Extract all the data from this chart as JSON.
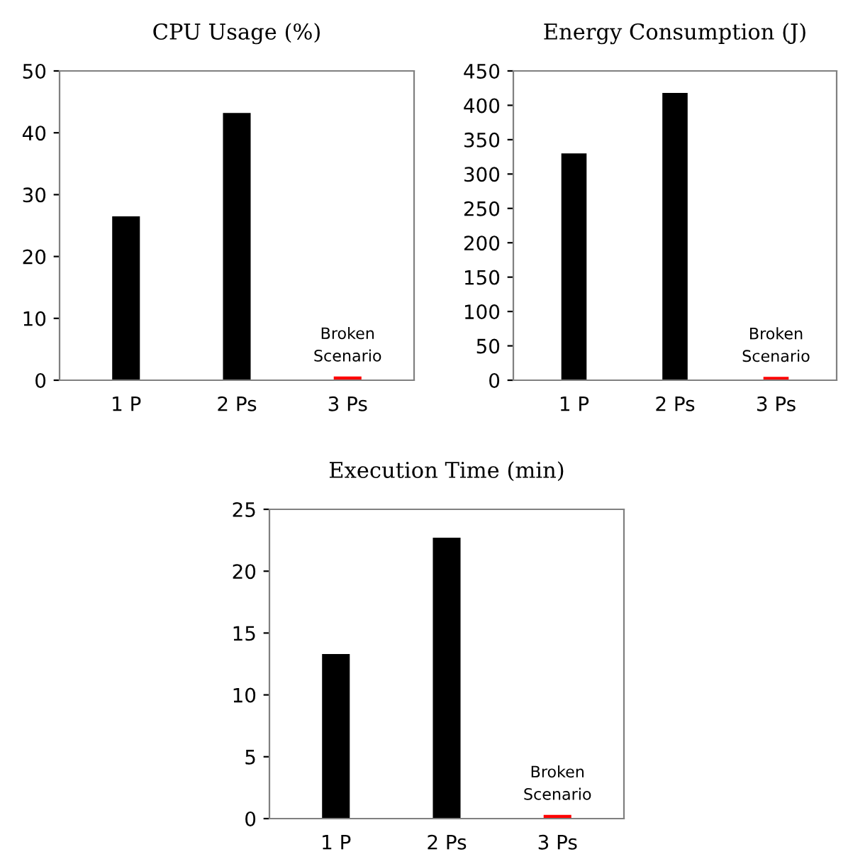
{
  "chart_data": [
    {
      "type": "bar",
      "title": "CPU Usage (%)",
      "categories": [
        "1 P",
        "2 Ps",
        "3 Ps"
      ],
      "values": [
        26.5,
        43.2,
        0.6
      ],
      "colors": [
        "#000000",
        "#000000",
        "#ff0000"
      ],
      "ylim": [
        0,
        50
      ],
      "yticks": [
        0,
        10,
        20,
        30,
        40,
        50
      ],
      "grid": false,
      "annotations": [
        {
          "text": "Broken\nScenario",
          "x": "3 Ps",
          "y": 0.6
        }
      ]
    },
    {
      "type": "bar",
      "title": "Energy Consumption (J)",
      "categories": [
        "1 P",
        "2 Ps",
        "3 Ps"
      ],
      "values": [
        330,
        418,
        5
      ],
      "colors": [
        "#000000",
        "#000000",
        "#ff0000"
      ],
      "ylim": [
        0,
        450
      ],
      "yticks": [
        0,
        50,
        100,
        150,
        200,
        250,
        300,
        350,
        400,
        450
      ],
      "grid": false,
      "annotations": [
        {
          "text": "Broken\nScenario",
          "x": "3 Ps",
          "y": 5
        }
      ]
    },
    {
      "type": "bar",
      "title": "Execution Time (min)",
      "categories": [
        "1 P",
        "2 Ps",
        "3 Ps"
      ],
      "values": [
        13.3,
        22.7,
        0.3
      ],
      "colors": [
        "#000000",
        "#000000",
        "#ff0000"
      ],
      "ylim": [
        0,
        25
      ],
      "yticks": [
        0,
        5,
        10,
        15,
        20,
        25
      ],
      "grid": false,
      "annotations": [
        {
          "text": "Broken\nScenario",
          "x": "3 Ps",
          "y": 0.3
        }
      ]
    }
  ]
}
